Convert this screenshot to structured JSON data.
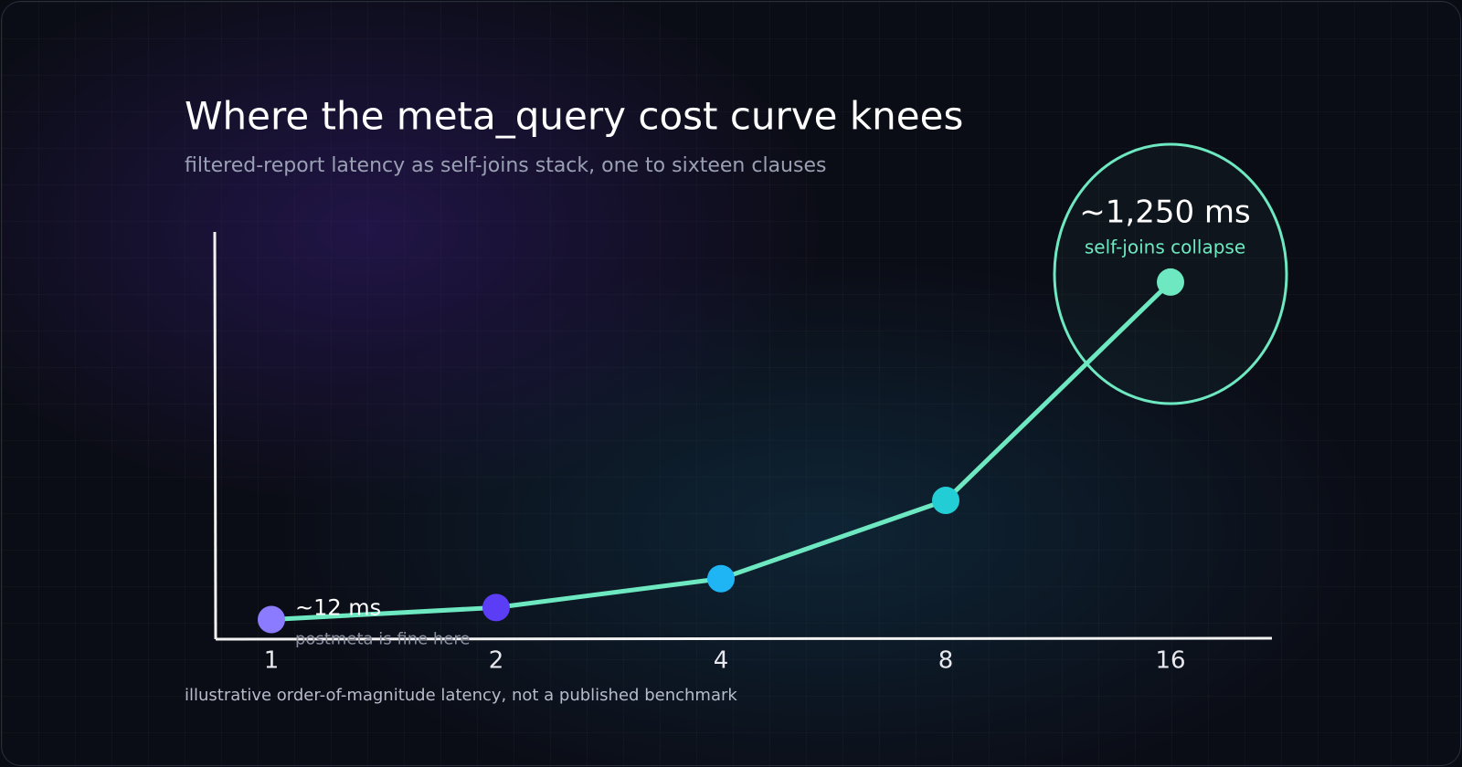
{
  "chart_data": {
    "type": "line",
    "title": "Where the meta_query cost curve knees",
    "subtitle": "filtered-report latency as self-joins stack, one to sixteen clauses",
    "categories": [
      "1",
      "2",
      "4",
      "8",
      "16"
    ],
    "values": [
      12,
      56,
      162,
      449,
      1250
    ],
    "value_labels": [
      "~12 ms",
      null,
      null,
      null,
      "~1,250 ms"
    ],
    "annotations": [
      "postmeta is fine here",
      "self-joins collapse"
    ],
    "footnote": "illustrative order-of-magnitude latency, not a published benchmark",
    "color": "#6ee8c0",
    "point_colors": [
      "#8b7bff",
      "#5b3df5",
      "#1fb5f5",
      "#22cdd6",
      "#6ee8c0"
    ],
    "ylim": [
      -60,
      1434
    ]
  }
}
